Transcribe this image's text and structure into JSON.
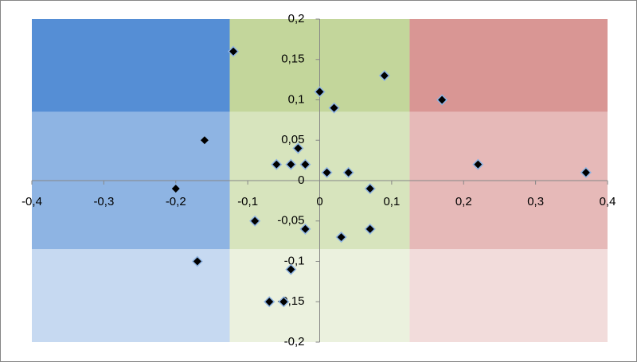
{
  "chart_data": {
    "type": "scatter",
    "x": [
      -0.12,
      0,
      0.09,
      0.02,
      0.17,
      -0.16,
      -0.03,
      -0.06,
      -0.04,
      -0.02,
      0.01,
      0.04,
      0.22,
      0.37,
      -0.2,
      0.07,
      -0.09,
      -0.02,
      0.03,
      0.07,
      -0.17,
      -0.04,
      -0.07,
      -0.05
    ],
    "values": [
      0.16,
      0.11,
      0.13,
      0.09,
      0.1,
      0.05,
      0.04,
      0.02,
      0.02,
      0.02,
      0.01,
      0.01,
      0.02,
      0.01,
      -0.01,
      -0.01,
      -0.05,
      -0.06,
      -0.07,
      -0.06,
      -0.1,
      -0.11,
      -0.15,
      -0.15
    ],
    "color": "#000000",
    "edge_color": "#8eb4e3",
    "xlim": [
      -0.4,
      0.4
    ],
    "ylim": [
      -0.2,
      0.2
    ],
    "xticks": [
      {
        "value": -0.4,
        "label": "-0,4"
      },
      {
        "value": -0.3,
        "label": "-0,3"
      },
      {
        "value": -0.2,
        "label": "-0,2"
      },
      {
        "value": -0.1,
        "label": "-0,1"
      },
      0,
      {
        "value": 0.1,
        "label": "0,1"
      },
      {
        "value": 0.2,
        "label": "0,2"
      },
      {
        "value": 0.3,
        "label": "0,3"
      },
      {
        "value": 0.4,
        "label": "0,4"
      }
    ],
    "yticks": [
      {
        "value": -0.2,
        "label": "-0,2"
      },
      {
        "value": -0.15,
        "label": "-0,15"
      },
      {
        "value": -0.1,
        "label": "-0,1"
      },
      {
        "value": -0.05,
        "label": "-0,05"
      },
      0,
      {
        "value": 0.05,
        "label": "0,05"
      },
      {
        "value": 0.1,
        "label": "0,1"
      },
      {
        "value": 0.15,
        "label": "0,15"
      },
      {
        "value": 0.2,
        "label": "0,2"
      }
    ],
    "zone_x_bounds": [
      -0.125,
      0.125
    ],
    "zone_y_bounds": [
      -0.085,
      0.085
    ],
    "zone_colors": [
      [
        "#558ed5",
        "#c3d69b",
        "#d99694"
      ],
      [
        "#8eb4e3",
        "#d7e4bd",
        "#e6b9b8"
      ],
      [
        "#c6d9f1",
        "#ebf1de",
        "#f2dcdb"
      ]
    ]
  }
}
